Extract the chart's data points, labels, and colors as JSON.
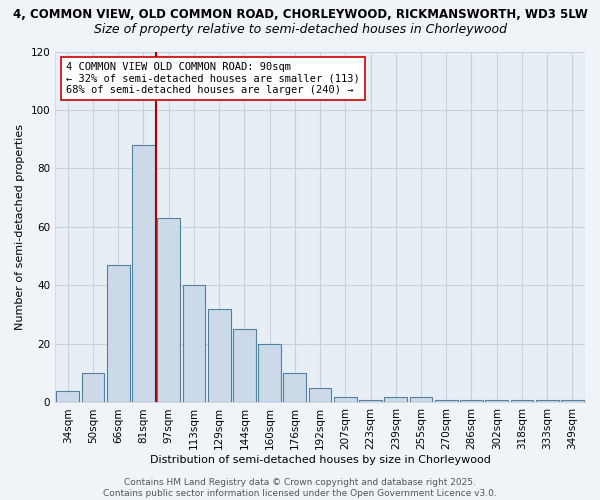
{
  "title_line1": "4, COMMON VIEW, OLD COMMON ROAD, CHORLEYWOOD, RICKMANSWORTH, WD3 5LW",
  "title_line2": "Size of property relative to semi-detached houses in Chorleywood",
  "xlabel": "Distribution of semi-detached houses by size in Chorleywood",
  "ylabel": "Number of semi-detached properties",
  "categories": [
    "34sqm",
    "50sqm",
    "66sqm",
    "81sqm",
    "97sqm",
    "113sqm",
    "129sqm",
    "144sqm",
    "160sqm",
    "176sqm",
    "192sqm",
    "207sqm",
    "223sqm",
    "239sqm",
    "255sqm",
    "270sqm",
    "286sqm",
    "302sqm",
    "318sqm",
    "333sqm",
    "349sqm"
  ],
  "values": [
    4,
    10,
    47,
    88,
    63,
    40,
    32,
    25,
    20,
    10,
    5,
    2,
    1,
    2,
    2,
    1,
    1,
    1,
    1,
    1,
    1
  ],
  "bar_color": "#ccd9e8",
  "bar_edge_color": "#5580a0",
  "vline_index": 3.5,
  "vline_color": "#aa0000",
  "annotation_text": "4 COMMON VIEW OLD COMMON ROAD: 90sqm\n← 32% of semi-detached houses are smaller (113)\n68% of semi-detached houses are larger (240) →",
  "annotation_box_edge_color": "#cc0000",
  "annotation_box_face_color": "white",
  "ylim": [
    0,
    120
  ],
  "yticks": [
    0,
    20,
    40,
    60,
    80,
    100,
    120
  ],
  "footer_text": "Contains HM Land Registry data © Crown copyright and database right 2025.\nContains public sector information licensed under the Open Government Licence v3.0.",
  "background_color": "#f0f4f8",
  "plot_bg_color": "#e8eef5",
  "grid_color": "#c8d0dc",
  "title1_fontsize": 8.5,
  "title2_fontsize": 9,
  "axis_label_fontsize": 8,
  "tick_fontsize": 7.5,
  "annotation_fontsize": 7.5,
  "footer_fontsize": 6.5
}
